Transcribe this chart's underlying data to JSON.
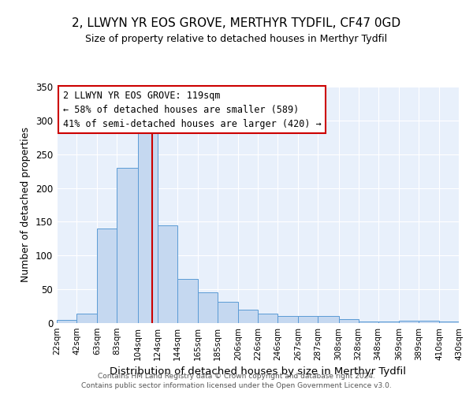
{
  "title": "2, LLWYN YR EOS GROVE, MERTHYR TYDFIL, CF47 0GD",
  "subtitle": "Size of property relative to detached houses in Merthyr Tydfil",
  "xlabel": "Distribution of detached houses by size in Merthyr Tydfil",
  "ylabel": "Number of detached properties",
  "bar_color": "#c5d8f0",
  "bar_edge_color": "#5b9bd5",
  "background_color": "#e8f0fb",
  "grid_color": "white",
  "vline_x": 119,
  "vline_color": "#cc0000",
  "bin_edges": [
    22,
    42,
    63,
    83,
    104,
    124,
    144,
    165,
    185,
    206,
    226,
    246,
    267,
    287,
    308,
    328,
    348,
    369,
    389,
    410,
    430
  ],
  "bin_labels": [
    "22sqm",
    "42sqm",
    "63sqm",
    "83sqm",
    "104sqm",
    "124sqm",
    "144sqm",
    "165sqm",
    "185sqm",
    "206sqm",
    "226sqm",
    "246sqm",
    "267sqm",
    "287sqm",
    "308sqm",
    "328sqm",
    "348sqm",
    "369sqm",
    "389sqm",
    "410sqm",
    "430sqm"
  ],
  "bar_heights": [
    5,
    14,
    140,
    230,
    287,
    145,
    65,
    46,
    31,
    20,
    14,
    11,
    10,
    10,
    6,
    2,
    2,
    3,
    4,
    2
  ],
  "ylim": [
    0,
    350
  ],
  "yticks": [
    0,
    50,
    100,
    150,
    200,
    250,
    300,
    350
  ],
  "annotation_line1": "2 LLWYN YR EOS GROVE: 119sqm",
  "annotation_line2": "← 58% of detached houses are smaller (589)",
  "annotation_line3": "41% of semi-detached houses are larger (420) →",
  "footer1": "Contains HM Land Registry data © Crown copyright and database right 2024.",
  "footer2": "Contains public sector information licensed under the Open Government Licence v3.0."
}
